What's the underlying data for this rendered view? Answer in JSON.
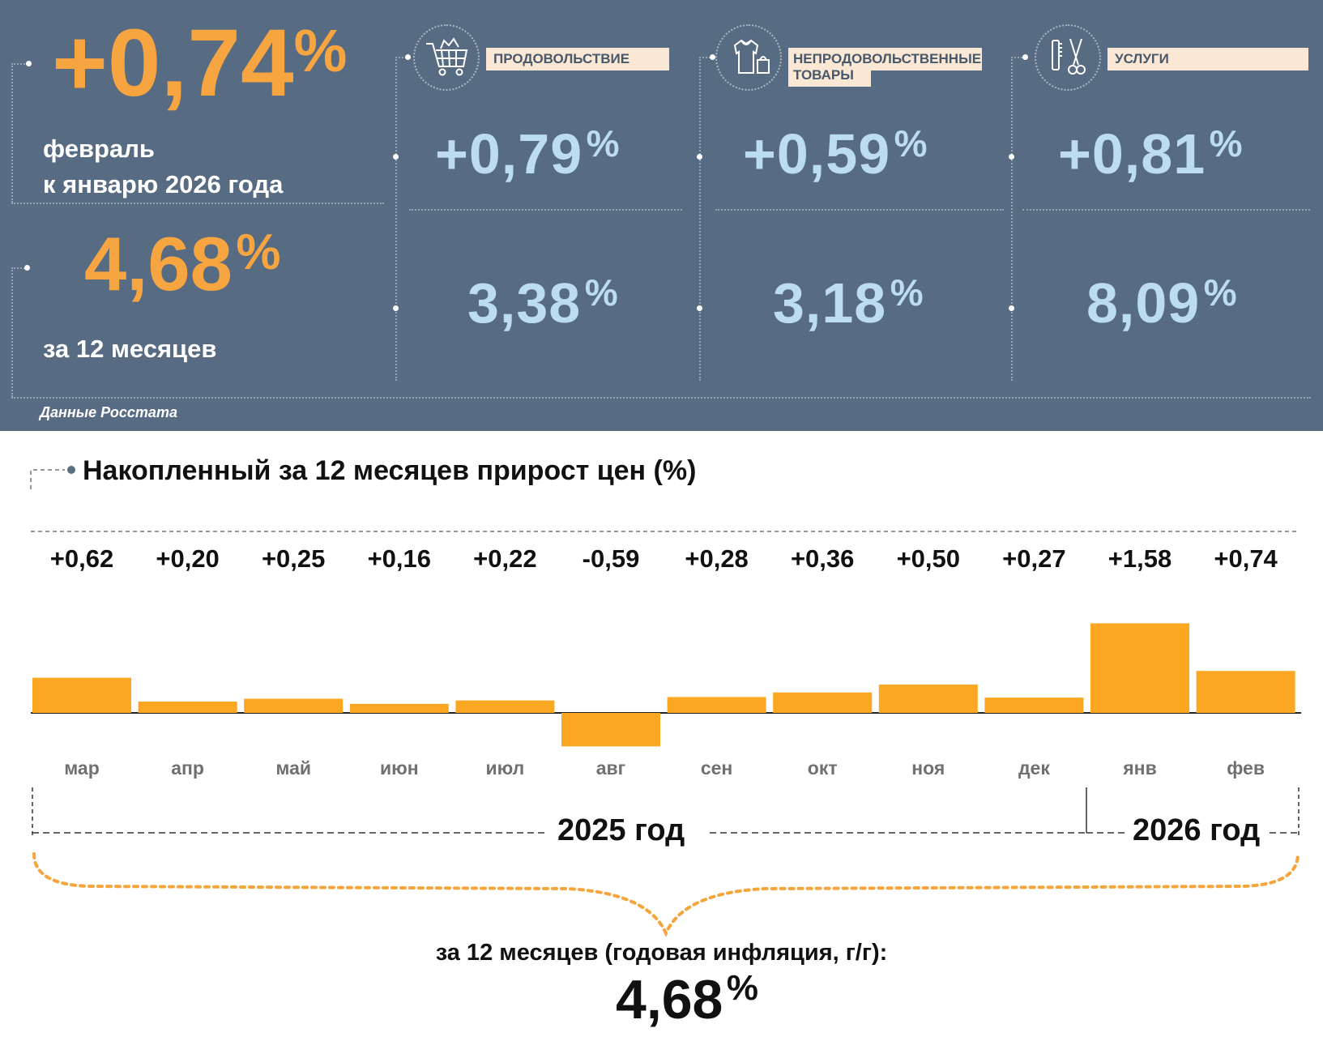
{
  "top": {
    "headline": {
      "value": "+0,74",
      "unit": "%",
      "line1": "февраль",
      "line2": "к январю 2026 года"
    },
    "annual": {
      "value": "4,68",
      "unit": "%",
      "label": "за 12 месяцев"
    },
    "source": "Данные Росстата",
    "categories": [
      {
        "label": "ПРОДОВОЛЬСТВИЕ",
        "icon": "shopping-cart-icon",
        "monthly": "+0,79",
        "annual": "3,38",
        "unit": "%"
      },
      {
        "label_line1": "НЕПРОДОВОЛЬСТВЕННЫЕ",
        "label_line2": "ТОВАРЫ",
        "icon": "clothes-bag-icon",
        "monthly": "+0,59",
        "annual": "3,18",
        "unit": "%"
      },
      {
        "label": "УСЛУГИ",
        "icon": "comb-scissors-icon",
        "monthly": "+0,81",
        "annual": "8,09",
        "unit": "%"
      }
    ],
    "colors": {
      "background": "#576b82",
      "accent": "#f7a540",
      "value_blue": "#bcdcef",
      "label_bg": "#fbe8d4"
    }
  },
  "chart_data": {
    "type": "bar",
    "title": "Накопленный за 12 месяцев прирост цен (%)",
    "categories": [
      "мар",
      "апр",
      "май",
      "июн",
      "июл",
      "авг",
      "сен",
      "окт",
      "ноя",
      "дек",
      "янв",
      "фев"
    ],
    "value_labels": [
      "+0,62",
      "+0,20",
      "+0,25",
      "+0,16",
      "+0,22",
      "-0,59",
      "+0,28",
      "+0,36",
      "+0,50",
      "+0,27",
      "+1,58",
      "+0,74"
    ],
    "values": [
      0.62,
      0.2,
      0.25,
      0.16,
      0.22,
      -0.59,
      0.28,
      0.36,
      0.5,
      0.27,
      1.58,
      0.74
    ],
    "bar_color": "#fca722",
    "grid": false,
    "year_labels": [
      "2025 год",
      "2026 год"
    ],
    "summary_label": "за 12 месяцев (годовая инфляция, г/г):",
    "summary_value": "4,68",
    "summary_unit": "%"
  }
}
